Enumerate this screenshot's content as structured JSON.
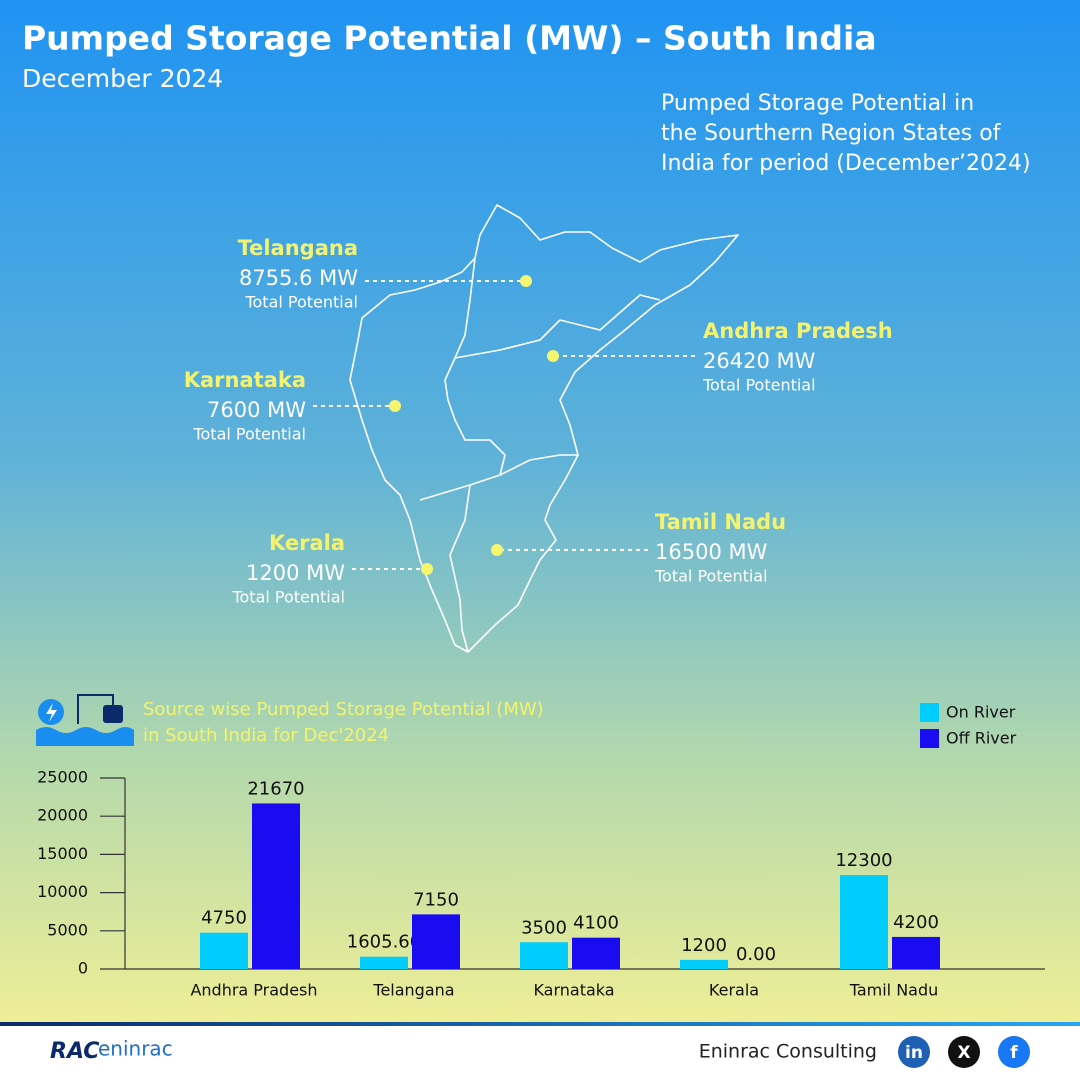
{
  "header": {
    "title": "Pumped Storage Potential (MW) – South India",
    "subtitle": "December 2024"
  },
  "map": {
    "description": [
      "Pumped Storage Potential in",
      "the Sourthern Region States of",
      "India for period (December’2024)"
    ],
    "states": [
      {
        "name": "Telangana",
        "value": "8755.6 MW",
        "caption": "Total Potential"
      },
      {
        "name": "Andhra Pradesh",
        "value": "26420 MW",
        "caption": "Total Potential"
      },
      {
        "name": "Karnataka",
        "value": "7600 MW",
        "caption": "Total Potential"
      },
      {
        "name": "Kerala",
        "value": "1200 MW",
        "caption": "Total Potential"
      },
      {
        "name": "Tamil Nadu",
        "value": "16500 MW",
        "caption": "Total Potential"
      }
    ]
  },
  "chart_data": {
    "type": "bar",
    "title": "Source wise Pumped Storage Potential (MW)",
    "subtitle": "in South India for Dec'2024",
    "categories": [
      "Andhra Pradesh",
      "Telangana",
      "Karnataka",
      "Kerala",
      "Tamil Nadu"
    ],
    "series": [
      {
        "name": "On River",
        "color": "#00cdfc",
        "values": [
          4750,
          1605.6,
          3500,
          1200,
          12300
        ],
        "value_labels": [
          "4750",
          "1605.60",
          "3500",
          "1200",
          "12300"
        ]
      },
      {
        "name": "Off River",
        "color": "#1a0cf0",
        "values": [
          21670,
          7150,
          4100,
          0,
          4200
        ],
        "value_labels": [
          "21670",
          "7150",
          "4100",
          "0.00",
          "4200"
        ]
      }
    ],
    "ylim": [
      0,
      25000
    ],
    "yticks": [
      0,
      5000,
      10000,
      15000,
      20000,
      25000
    ],
    "legend": "top-right"
  },
  "footer": {
    "logo_mark": "RAC",
    "logo_text": "eninrac",
    "company": "Eninrac Consulting",
    "social": [
      "in",
      "X",
      "f"
    ]
  }
}
